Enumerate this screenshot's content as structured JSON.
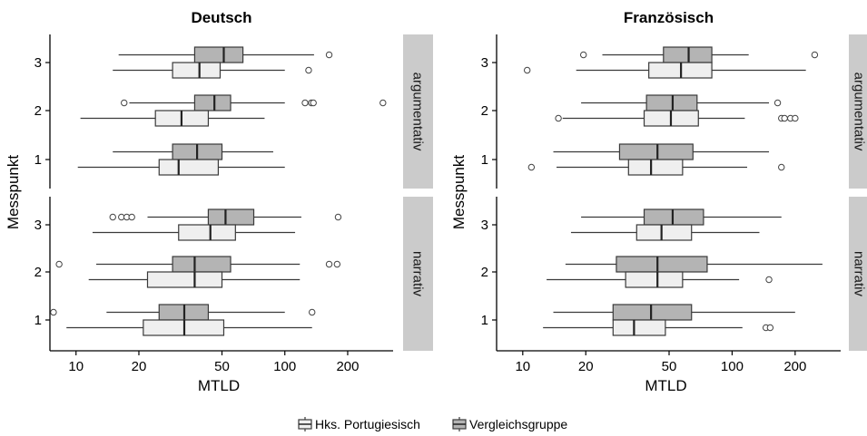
{
  "chart_data": {
    "type": "boxplot",
    "orientation": "horizontal",
    "xscale": "log",
    "xlim": [
      7.5,
      330
    ],
    "xticks": [
      10,
      20,
      50,
      100,
      200
    ],
    "xtick_labels": [
      "10",
      "20",
      "50",
      "100",
      "200"
    ],
    "xlabel": "MTLD",
    "ylabel": "Messpunkt",
    "y_categories": [
      "1",
      "2",
      "3"
    ],
    "grid": false,
    "legend_position": "bottom",
    "colors": {
      "Hks. Portugiesisch": "#efefef",
      "Vergleichsgruppe": "#b4b4b4",
      "strip": "#cbcbcb"
    },
    "legend": [
      {
        "name": "Hks. Portugiesisch",
        "color": "#efefef"
      },
      {
        "name": "Vergleichsgruppe",
        "color": "#b4b4b4"
      }
    ],
    "panels": [
      {
        "title": "Deutsch",
        "rows": [
          {
            "strip": "argumentativ",
            "groups": {
              "3": {
                "Vergleichsgruppe": {
                  "whislo": 16,
                  "q1": 37,
                  "med": 51,
                  "q3": 63,
                  "whishi": 138,
                  "fliers": [
                    163
                  ]
                },
                "Hks. Portugiesisch": {
                  "whislo": 15,
                  "q1": 29,
                  "med": 39,
                  "q3": 49,
                  "whishi": 100,
                  "fliers": [
                    130
                  ]
                }
              },
              "2": {
                "Vergleichsgruppe": {
                  "whislo": 18,
                  "q1": 37,
                  "med": 46,
                  "q3": 55,
                  "whishi": 100,
                  "fliers": [
                    17,
                    125,
                    134,
                    137,
                    295
                  ]
                },
                "Hks. Portugiesisch": {
                  "whislo": 10.5,
                  "q1": 24,
                  "med": 32,
                  "q3": 43,
                  "whishi": 80,
                  "fliers": []
                }
              },
              "1": {
                "Vergleichsgruppe": {
                  "whislo": 15,
                  "q1": 29,
                  "med": 38,
                  "q3": 50,
                  "whishi": 88,
                  "fliers": []
                },
                "Hks. Portugiesisch": {
                  "whislo": 10.2,
                  "q1": 25,
                  "med": 31,
                  "q3": 48,
                  "whishi": 100,
                  "fliers": []
                }
              }
            }
          },
          {
            "strip": "narrativ",
            "groups": {
              "3": {
                "Vergleichsgruppe": {
                  "whislo": 22,
                  "q1": 43,
                  "med": 52,
                  "q3": 71,
                  "whishi": 120,
                  "fliers": [
                    15,
                    16.5,
                    17.5,
                    18.5,
                    180
                  ]
                },
                "Hks. Portugiesisch": {
                  "whislo": 12,
                  "q1": 31,
                  "med": 44,
                  "q3": 58,
                  "whishi": 112,
                  "fliers": []
                }
              },
              "2": {
                "Vergleichsgruppe": {
                  "whislo": 12.5,
                  "q1": 29,
                  "med": 37,
                  "q3": 55,
                  "whishi": 118,
                  "fliers": [
                    8.3,
                    163,
                    178
                  ]
                },
                "Hks. Portugiesisch": {
                  "whislo": 11.5,
                  "q1": 22,
                  "med": 37,
                  "q3": 50,
                  "whishi": 118,
                  "fliers": []
                }
              },
              "1": {
                "Vergleichsgruppe": {
                  "whislo": 14,
                  "q1": 25,
                  "med": 33,
                  "q3": 43,
                  "whishi": 100,
                  "fliers": [
                    7.8,
                    135
                  ]
                },
                "Hks. Portugiesisch": {
                  "whislo": 9,
                  "q1": 21,
                  "med": 33,
                  "q3": 51,
                  "whishi": 135,
                  "fliers": []
                }
              }
            }
          }
        ]
      },
      {
        "title": "Französisch",
        "rows": [
          {
            "strip": "argumentativ",
            "groups": {
              "3": {
                "Vergleichsgruppe": {
                  "whislo": 24,
                  "q1": 47,
                  "med": 62,
                  "q3": 80,
                  "whishi": 120,
                  "fliers": [
                    19.5,
                    248
                  ]
                },
                "Hks. Portugiesisch": {
                  "whislo": 18,
                  "q1": 40,
                  "med": 57,
                  "q3": 80,
                  "whishi": 225,
                  "fliers": [
                    10.5
                  ]
                }
              },
              "2": {
                "Vergleichsgruppe": {
                  "whislo": 19,
                  "q1": 39,
                  "med": 52,
                  "q3": 68,
                  "whishi": 150,
                  "fliers": [
                    165
                  ]
                },
                "Hks. Portugiesisch": {
                  "whislo": 15.5,
                  "q1": 38,
                  "med": 51,
                  "q3": 69,
                  "whishi": 115,
                  "fliers": [
                    14.8,
                    172,
                    178,
                    190,
                    200
                  ]
                }
              },
              "1": {
                "Vergleichsgruppe": {
                  "whislo": 14,
                  "q1": 29,
                  "med": 44,
                  "q3": 65,
                  "whishi": 150,
                  "fliers": []
                },
                "Hks. Portugiesisch": {
                  "whislo": 14.5,
                  "q1": 32,
                  "med": 41,
                  "q3": 58,
                  "whishi": 118,
                  "fliers": [
                    11,
                    172
                  ]
                }
              }
            }
          },
          {
            "strip": "narrativ",
            "groups": {
              "3": {
                "Vergleichsgruppe": {
                  "whislo": 19,
                  "q1": 38,
                  "med": 52,
                  "q3": 73,
                  "whishi": 172,
                  "fliers": []
                },
                "Hks. Portugiesisch": {
                  "whislo": 17,
                  "q1": 35,
                  "med": 46,
                  "q3": 64,
                  "whishi": 135,
                  "fliers": []
                }
              },
              "2": {
                "Vergleichsgruppe": {
                  "whislo": 16,
                  "q1": 28,
                  "med": 44,
                  "q3": 76,
                  "whishi": 270,
                  "fliers": []
                },
                "Hks. Portugiesisch": {
                  "whislo": 13,
                  "q1": 31,
                  "med": 44,
                  "q3": 58,
                  "whishi": 108,
                  "fliers": [
                    150
                  ]
                }
              },
              "1": {
                "Vergleichsgruppe": {
                  "whislo": 14,
                  "q1": 27,
                  "med": 41,
                  "q3": 64,
                  "whishi": 200,
                  "fliers": []
                },
                "Hks. Portugiesisch": {
                  "whislo": 12.5,
                  "q1": 27,
                  "med": 34,
                  "q3": 48,
                  "whishi": 112,
                  "fliers": [
                    145,
                    152
                  ]
                }
              }
            }
          }
        ]
      }
    ]
  }
}
